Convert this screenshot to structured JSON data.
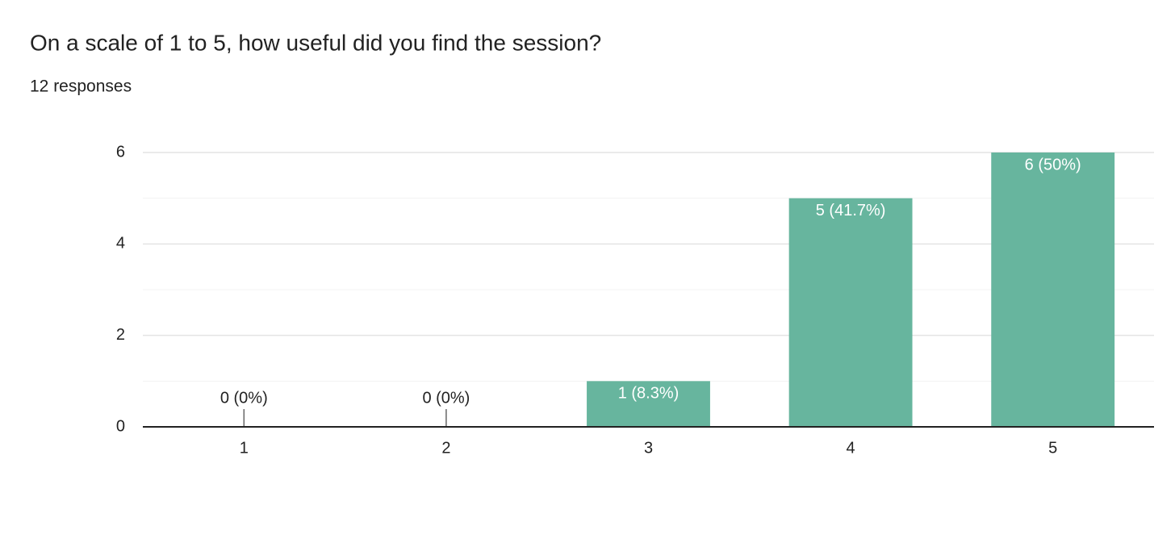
{
  "chart_data": {
    "type": "bar",
    "title": "On a scale of 1 to 5, how useful did you find the session?",
    "subtitle": "12 responses",
    "categories": [
      "1",
      "2",
      "3",
      "4",
      "5"
    ],
    "values": [
      0,
      0,
      1,
      5,
      6
    ],
    "value_labels": [
      "0 (0%)",
      "0 (0%)",
      "1 (8.3%)",
      "5 (41.7%)",
      "6 (50%)"
    ],
    "color": "#67b59e",
    "ylim": [
      0,
      6
    ],
    "yticks": [
      0,
      2,
      4,
      6
    ],
    "minor_yticks": [
      1,
      3,
      5
    ],
    "grid": true
  }
}
